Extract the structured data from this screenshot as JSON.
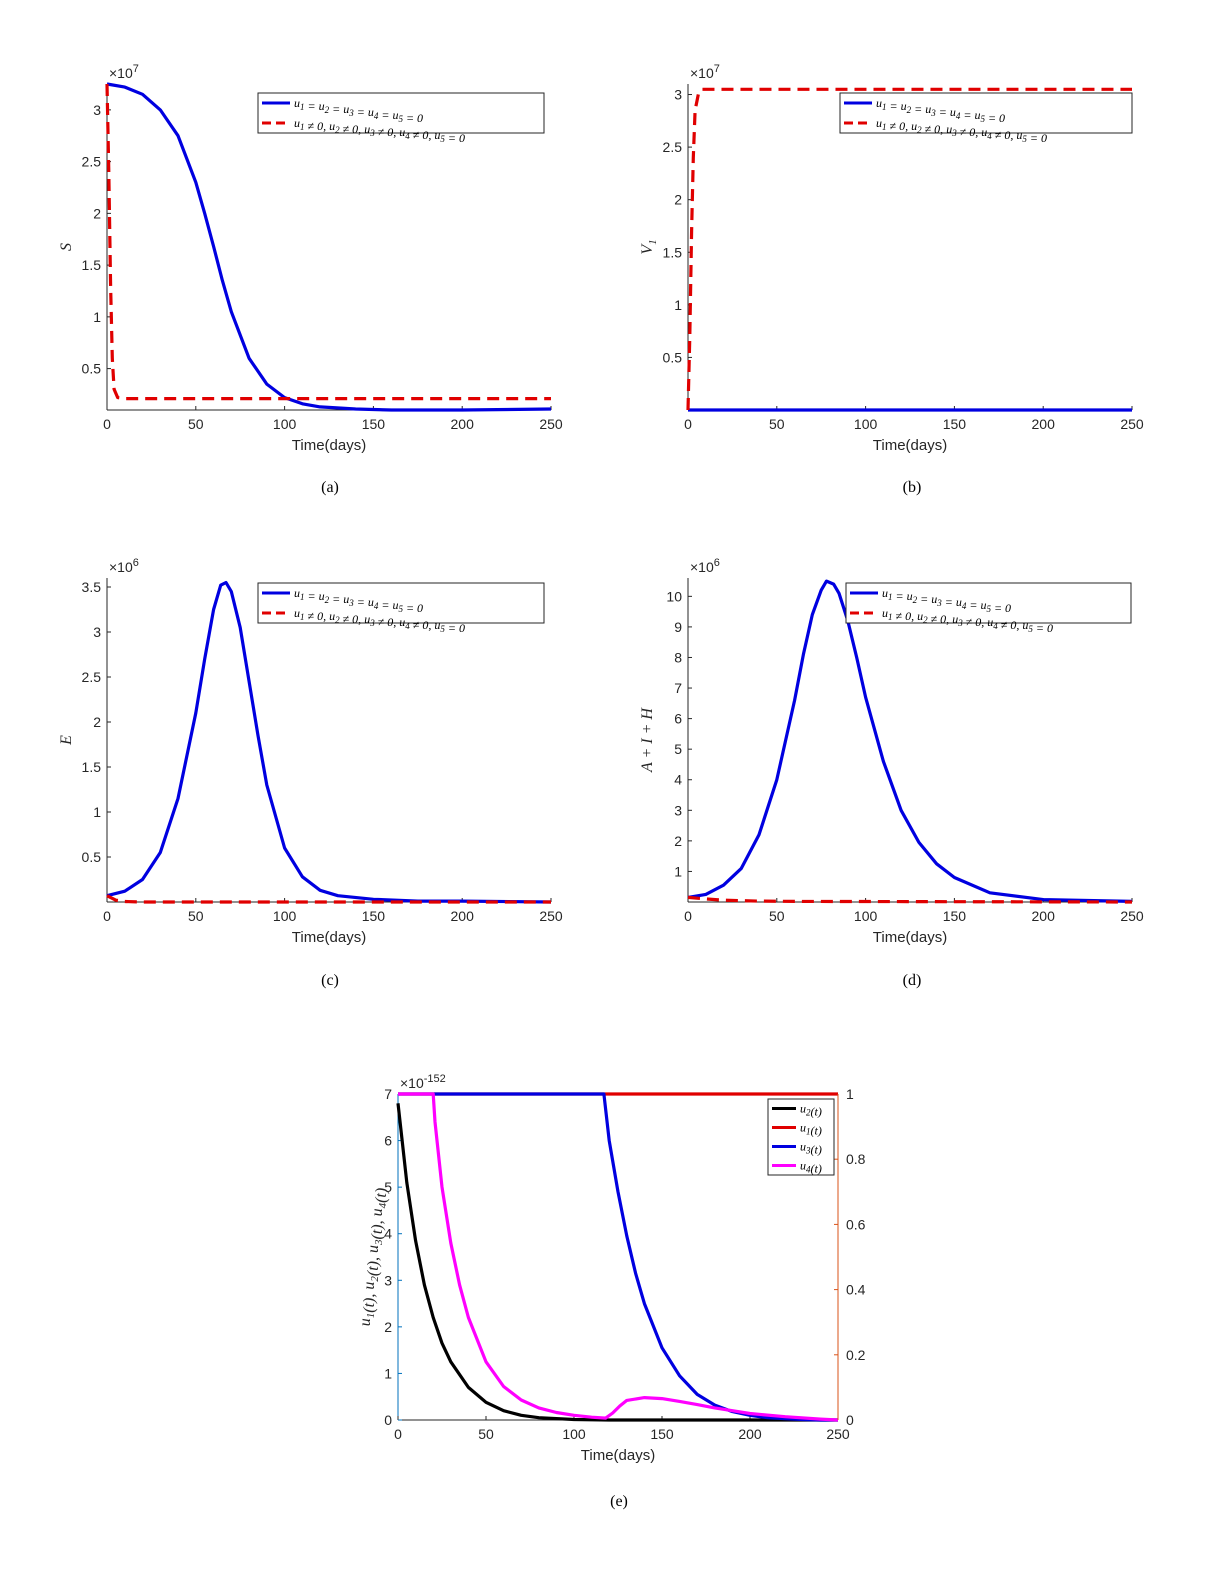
{
  "page": {
    "header_text": "",
    "captions": [
      "(a)",
      "(b)",
      "(c)",
      "(d)",
      "(e)"
    ]
  },
  "chart_data": [
    {
      "id": "a",
      "type": "line",
      "caption": "(a)",
      "xlabel": "Time(days)",
      "ylabel": "S",
      "multiplier": "×10^7",
      "xlim": [
        0,
        250
      ],
      "ylim": [
        0.1,
        3.25
      ],
      "xticks": [
        0,
        50,
        100,
        150,
        200,
        250
      ],
      "yticks": [
        0.5,
        1,
        1.5,
        2,
        2.5,
        3
      ],
      "ytick_labels": [
        "0.5",
        "1",
        "1.5",
        "2",
        "2.5",
        "3"
      ],
      "legend_position": "top-right",
      "series": [
        {
          "name": "u1 = u2 = u3 = u4 = u5 = 0",
          "color": "#0000e0",
          "dash": "solid",
          "x": [
            0,
            10,
            20,
            30,
            40,
            50,
            55,
            60,
            65,
            70,
            80,
            90,
            100,
            110,
            120,
            140,
            160,
            180,
            200,
            250
          ],
          "y": [
            3.25,
            3.22,
            3.15,
            3.0,
            2.75,
            2.3,
            2.0,
            1.68,
            1.35,
            1.05,
            0.6,
            0.35,
            0.22,
            0.16,
            0.13,
            0.11,
            0.1,
            0.1,
            0.1,
            0.11
          ]
        },
        {
          "name": "u1 ≠ 0, u2 ≠ 0, u3 ≠ 0, u4 ≠ 0, u5 = 0",
          "color": "#e00000",
          "dash": "dashed",
          "x": [
            0,
            1,
            2,
            3,
            4,
            6,
            10,
            250
          ],
          "y": [
            3.25,
            2.4,
            1.3,
            0.6,
            0.3,
            0.22,
            0.21,
            0.21
          ]
        }
      ]
    },
    {
      "id": "b",
      "type": "line",
      "caption": "(b)",
      "xlabel": "Time(days)",
      "ylabel": "V1",
      "multiplier": "×10^7",
      "xlim": [
        0,
        250
      ],
      "ylim": [
        0,
        3.1
      ],
      "xticks": [
        0,
        50,
        100,
        150,
        200,
        250
      ],
      "yticks": [
        0.5,
        1,
        1.5,
        2,
        2.5,
        3
      ],
      "ytick_labels": [
        "0.5",
        "1",
        "1.5",
        "2",
        "2.5",
        "3"
      ],
      "legend_position": "top-right",
      "series": [
        {
          "name": "u1 = u2 = u3 = u4 = u5 = 0",
          "color": "#0000e0",
          "dash": "solid",
          "x": [
            0,
            250
          ],
          "y": [
            0,
            0
          ]
        },
        {
          "name": "u1 ≠ 0, u2 ≠ 0, u3 ≠ 0, u4 ≠ 0, u5 = 0",
          "color": "#e00000",
          "dash": "dashed",
          "x": [
            0,
            1,
            2,
            3,
            4,
            6,
            8,
            250
          ],
          "y": [
            0,
            0.7,
            1.7,
            2.4,
            2.85,
            3.02,
            3.05,
            3.05
          ]
        }
      ]
    },
    {
      "id": "c",
      "type": "line",
      "caption": "(c)",
      "xlabel": "Time(days)",
      "ylabel": "E",
      "multiplier": "×10^6",
      "xlim": [
        0,
        250
      ],
      "ylim": [
        0,
        3.6
      ],
      "xticks": [
        0,
        50,
        100,
        150,
        200,
        250
      ],
      "yticks": [
        0.5,
        1,
        1.5,
        2,
        2.5,
        3,
        3.5
      ],
      "ytick_labels": [
        "0.5",
        "1",
        "1.5",
        "2",
        "2.5",
        "3",
        "3.5"
      ],
      "legend_position": "top-right",
      "series": [
        {
          "name": "u1 = u2 = u3 = u4 = u5 = 0",
          "color": "#0000e0",
          "dash": "solid",
          "x": [
            0,
            10,
            20,
            30,
            40,
            50,
            55,
            60,
            64,
            67,
            70,
            75,
            80,
            85,
            90,
            100,
            110,
            120,
            130,
            150,
            175,
            200,
            250
          ],
          "y": [
            0.07,
            0.12,
            0.25,
            0.55,
            1.15,
            2.1,
            2.7,
            3.25,
            3.52,
            3.55,
            3.45,
            3.05,
            2.45,
            1.85,
            1.3,
            0.6,
            0.28,
            0.13,
            0.07,
            0.03,
            0.01,
            0.01,
            0.0
          ]
        },
        {
          "name": "u1 ≠ 0, u2 ≠ 0, u3 ≠ 0, u4 ≠ 0, u5 = 0",
          "color": "#e00000",
          "dash": "dashed",
          "x": [
            0,
            5,
            10,
            20,
            250
          ],
          "y": [
            0.07,
            0.02,
            0.005,
            0.0,
            0.0
          ]
        }
      ]
    },
    {
      "id": "d",
      "type": "line",
      "caption": "(d)",
      "xlabel": "Time(days)",
      "ylabel": "A + I + H",
      "multiplier": "×10^6",
      "xlim": [
        0,
        250
      ],
      "ylim": [
        0,
        10.6
      ],
      "xticks": [
        0,
        50,
        100,
        150,
        200,
        250
      ],
      "yticks": [
        1,
        2,
        3,
        4,
        5,
        6,
        7,
        8,
        9,
        10
      ],
      "ytick_labels": [
        "1",
        "2",
        "3",
        "4",
        "5",
        "6",
        "7",
        "8",
        "9",
        "10"
      ],
      "legend_position": "top-right",
      "series": [
        {
          "name": "u1 = u2 = u3 = u4 = u5 = 0",
          "color": "#0000e0",
          "dash": "solid",
          "x": [
            0,
            10,
            20,
            30,
            40,
            50,
            60,
            65,
            70,
            75,
            78,
            82,
            85,
            90,
            95,
            100,
            110,
            120,
            130,
            140,
            150,
            170,
            200,
            250
          ],
          "y": [
            0.15,
            0.25,
            0.55,
            1.1,
            2.2,
            4.0,
            6.6,
            8.1,
            9.4,
            10.2,
            10.5,
            10.4,
            10.1,
            9.2,
            8.0,
            6.7,
            4.6,
            3.0,
            1.95,
            1.25,
            0.8,
            0.3,
            0.08,
            0.02
          ]
        },
        {
          "name": "u1 ≠ 0, u2 ≠ 0, u3 ≠ 0, u4 ≠ 0, u5 = 0",
          "color": "#e00000",
          "dash": "dashed",
          "x": [
            0,
            10,
            20,
            40,
            60,
            250
          ],
          "y": [
            0.15,
            0.1,
            0.06,
            0.03,
            0.02,
            0.0
          ]
        }
      ]
    },
    {
      "id": "e",
      "type": "line",
      "caption": "(e)",
      "xlabel": "Time(days)",
      "ylabel": "u1(t), u2(t), u3(t), u4(t)",
      "multiplier": "×10^-152",
      "xlim": [
        0,
        250
      ],
      "ylim": [
        0,
        7
      ],
      "y2lim": [
        0,
        1
      ],
      "xticks": [
        0,
        50,
        100,
        150,
        200,
        250
      ],
      "yticks": [
        0,
        1,
        2,
        3,
        4,
        5,
        6,
        7
      ],
      "ytick_labels": [
        "0",
        "1",
        "2",
        "3",
        "4",
        "5",
        "6",
        "7"
      ],
      "y2ticks": [
        0,
        0.2,
        0.4,
        0.6,
        0.8,
        1
      ],
      "y2tick_labels": [
        "0",
        "0.2",
        "0.4",
        "0.6",
        "0.8",
        "1"
      ],
      "left_axis_color": "#0072bd",
      "right_axis_color": "#d95319",
      "legend_position": "top-right",
      "series": [
        {
          "name": "u2(t)",
          "color": "#000000",
          "axis": "left",
          "x": [
            0,
            5,
            10,
            15,
            20,
            25,
            30,
            40,
            50,
            60,
            70,
            80,
            100,
            120,
            150,
            200,
            250
          ],
          "y": [
            6.8,
            5.1,
            3.85,
            2.9,
            2.2,
            1.65,
            1.25,
            0.7,
            0.38,
            0.2,
            0.1,
            0.05,
            0.01,
            0.0,
            0.0,
            0.0,
            0.0
          ]
        },
        {
          "name": "u1(t)",
          "color": "#e00000",
          "axis": "left",
          "x": [
            0,
            250
          ],
          "y": [
            7,
            7
          ]
        },
        {
          "name": "u3(t)",
          "color": "#0000e0",
          "axis": "left",
          "x": [
            0,
            117,
            120,
            125,
            130,
            135,
            140,
            150,
            160,
            170,
            180,
            190,
            200,
            210,
            220,
            230,
            240,
            250
          ],
          "y": [
            7,
            7,
            6.0,
            4.9,
            3.95,
            3.15,
            2.5,
            1.55,
            0.95,
            0.55,
            0.32,
            0.18,
            0.1,
            0.05,
            0.03,
            0.01,
            0.0,
            0.0
          ]
        },
        {
          "name": "u4(t)",
          "color": "#ff00ff",
          "axis": "left",
          "x": [
            0,
            20,
            21,
            25,
            30,
            35,
            40,
            50,
            60,
            70,
            80,
            90,
            100,
            110,
            118,
            122,
            126,
            130,
            140,
            150,
            160,
            170,
            180,
            190,
            200,
            220,
            240,
            250
          ],
          "y": [
            7,
            7,
            6.4,
            5.0,
            3.8,
            2.9,
            2.2,
            1.25,
            0.72,
            0.43,
            0.26,
            0.16,
            0.1,
            0.06,
            0.04,
            0.15,
            0.3,
            0.42,
            0.48,
            0.46,
            0.4,
            0.33,
            0.26,
            0.2,
            0.14,
            0.07,
            0.02,
            0.0
          ]
        }
      ]
    }
  ]
}
